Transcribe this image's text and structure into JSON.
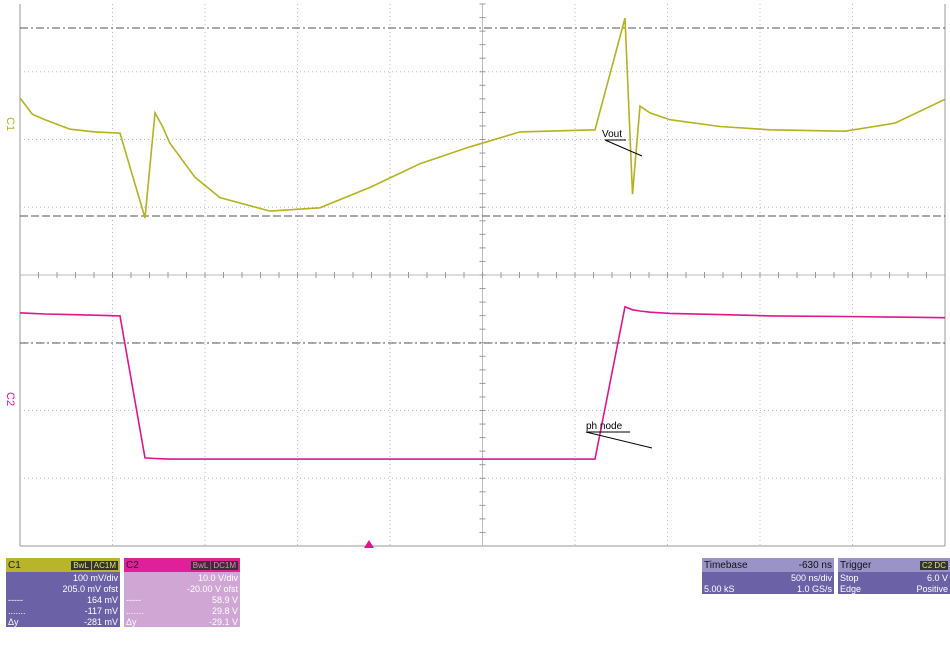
{
  "chart_data": {
    "type": "line",
    "title": "",
    "x": [
      0,
      0.05,
      0.1,
      0.2,
      0.3,
      0.4,
      0.5,
      0.54,
      0.57,
      0.6,
      0.65,
      0.7,
      0.8,
      1.0,
      1.2,
      1.4,
      1.6,
      1.8,
      2.0,
      2.3,
      2.42,
      2.45,
      2.48,
      2.52,
      2.6,
      2.8,
      3.0,
      3.3,
      3.5,
      3.7
    ],
    "series": [
      {
        "name": "C1",
        "channel_label": "C1",
        "color": "#b4b21e",
        "values": [
          0.062,
          0.038,
          0.03,
          0.016,
          0.012,
          0.01,
          -0.115,
          0.04,
          0.02,
          -0.005,
          -0.03,
          -0.055,
          -0.085,
          -0.105,
          -0.1,
          -0.07,
          -0.035,
          -0.01,
          0.012,
          0.015,
          0.18,
          -0.08,
          0.05,
          0.04,
          0.03,
          0.02,
          0.015,
          0.013,
          0.025,
          0.06
        ],
        "annotation": "Vout"
      },
      {
        "name": "C2",
        "channel_label": "C2",
        "color": "#e0168f",
        "values": [
          22.5,
          22.4,
          22.3,
          22.2,
          22.1,
          22.0,
          -1.3,
          -1.4,
          -1.45,
          -1.5,
          -1.5,
          -1.5,
          -1.5,
          -1.5,
          -1.5,
          -1.5,
          -1.5,
          -1.5,
          -1.5,
          -1.5,
          23.5,
          23.0,
          22.8,
          22.6,
          22.4,
          22.2,
          22.0,
          21.9,
          21.8,
          21.7
        ],
        "annotation": "ph node"
      }
    ],
    "annotations": [
      "Vout",
      "ph node"
    ],
    "grid": true
  },
  "panels": {
    "c1": {
      "name": "C1",
      "tag1": "BwL",
      "tag2": "AC1M",
      "rows": [
        {
          "l": "",
          "r": "100 mV/div"
        },
        {
          "l": "",
          "r": "205.0 mV ofst"
        },
        {
          "l": "-----",
          "r": "164 mV"
        },
        {
          "l": ".......",
          "r": "-117 mV"
        },
        {
          "l": "Δy",
          "r": "-281 mV"
        }
      ]
    },
    "c2": {
      "name": "C2",
      "tag1": "BwL",
      "tag2": "DC1M",
      "rows": [
        {
          "l": "",
          "r": "10.0 V/div"
        },
        {
          "l": "",
          "r": "-20.00 V ofst"
        },
        {
          "l": "-----",
          "r": "58.9 V"
        },
        {
          "l": ".......",
          "r": "29.8 V"
        },
        {
          "l": "Δy",
          "r": "-29.1 V"
        }
      ]
    },
    "timebase": {
      "name": "Timebase",
      "value": "-630 ns",
      "rows": [
        {
          "l": "",
          "r": "500 ns/div"
        },
        {
          "l": "5.00 kS",
          "r": "1.0 GS/s"
        }
      ]
    },
    "trigger": {
      "name": "Trigger",
      "tag": "C2 DC",
      "rows": [
        {
          "l": "Stop",
          "r": "6.0 V"
        },
        {
          "l": "Edge",
          "r": "Positive"
        }
      ]
    }
  },
  "colors": {
    "ch1": "#b4b21e",
    "ch2": "#e0168f",
    "panel": "#6a61a6"
  }
}
